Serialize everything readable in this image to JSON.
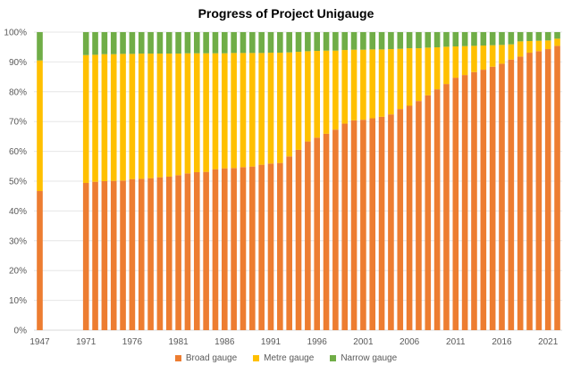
{
  "chart_data": {
    "type": "bar",
    "stacked": true,
    "title": "Progress of Project Unigauge",
    "xlabel": "",
    "ylabel": "",
    "ylim": [
      0,
      100
    ],
    "y_ticks": [
      "0%",
      "10%",
      "20%",
      "30%",
      "40%",
      "50%",
      "60%",
      "70%",
      "80%",
      "90%",
      "100%"
    ],
    "grid": true,
    "legend_position": "bottom",
    "categories": [
      "1947",
      "1971",
      "1972",
      "1973",
      "1974",
      "1975",
      "1976",
      "1977",
      "1978",
      "1979",
      "1980",
      "1981",
      "1982",
      "1983",
      "1984",
      "1985",
      "1986",
      "1987",
      "1988",
      "1989",
      "1990",
      "1991",
      "1992",
      "1993",
      "1994",
      "1995",
      "1996",
      "1997",
      "1998",
      "1999",
      "2000",
      "2001",
      "2002",
      "2003",
      "2004",
      "2005",
      "2006",
      "2007",
      "2008",
      "2009",
      "2010",
      "2011",
      "2012",
      "2013",
      "2014",
      "2015",
      "2016",
      "2017",
      "2018",
      "2019",
      "2020",
      "2021",
      "2022"
    ],
    "x_tick_labels": [
      "1947",
      "1971",
      "1976",
      "1981",
      "1986",
      "1991",
      "1996",
      "2001",
      "2006",
      "2011",
      "2016",
      "2021"
    ],
    "series": [
      {
        "name": "Broad gauge",
        "color": "#ED7D31",
        "values": [
          46.7,
          49.4,
          49.8,
          50.0,
          50.1,
          50.2,
          50.7,
          50.8,
          51.0,
          51.3,
          51.5,
          52.0,
          52.6,
          53.0,
          53.1,
          54.0,
          54.3,
          54.4,
          54.7,
          54.9,
          55.5,
          55.9,
          56.1,
          58.3,
          60.5,
          63.3,
          64.6,
          65.9,
          67.3,
          69.3,
          70.4,
          70.6,
          71.1,
          71.6,
          72.4,
          74.2,
          75.3,
          76.9,
          78.8,
          80.8,
          82.6,
          84.7,
          85.6,
          86.6,
          87.4,
          88.4,
          89.4,
          90.8,
          91.8,
          93.1,
          93.6,
          94.3,
          95.4
        ]
      },
      {
        "name": "Metre gauge",
        "color": "#FFC000",
        "values": [
          43.8,
          42.9,
          42.6,
          42.6,
          42.5,
          42.5,
          42.0,
          42.0,
          41.8,
          41.5,
          41.3,
          40.8,
          40.3,
          39.9,
          39.8,
          38.9,
          38.6,
          38.6,
          38.3,
          38.1,
          37.5,
          37.2,
          37.0,
          34.9,
          32.9,
          30.3,
          29.1,
          27.9,
          26.5,
          24.7,
          23.7,
          23.5,
          23.1,
          22.6,
          21.9,
          20.2,
          19.3,
          17.7,
          16.0,
          14.1,
          12.5,
          10.5,
          9.7,
          8.8,
          8.1,
          7.2,
          6.3,
          5.1,
          5.1,
          3.9,
          3.5,
          2.9,
          2.4
        ]
      },
      {
        "name": "Narrow gauge",
        "color": "#70AD47",
        "values": [
          9.5,
          7.7,
          7.6,
          7.4,
          7.4,
          7.3,
          7.3,
          7.2,
          7.2,
          7.2,
          7.2,
          7.2,
          7.1,
          7.1,
          7.1,
          7.1,
          7.1,
          7.0,
          7.0,
          7.0,
          7.0,
          6.9,
          6.9,
          6.8,
          6.6,
          6.4,
          6.3,
          6.2,
          6.2,
          6.0,
          5.9,
          5.9,
          5.8,
          5.8,
          5.7,
          5.6,
          5.4,
          5.4,
          5.2,
          5.1,
          4.9,
          4.8,
          4.7,
          4.6,
          4.5,
          4.4,
          4.3,
          4.1,
          3.1,
          3.0,
          2.9,
          2.8,
          2.2
        ]
      }
    ]
  }
}
